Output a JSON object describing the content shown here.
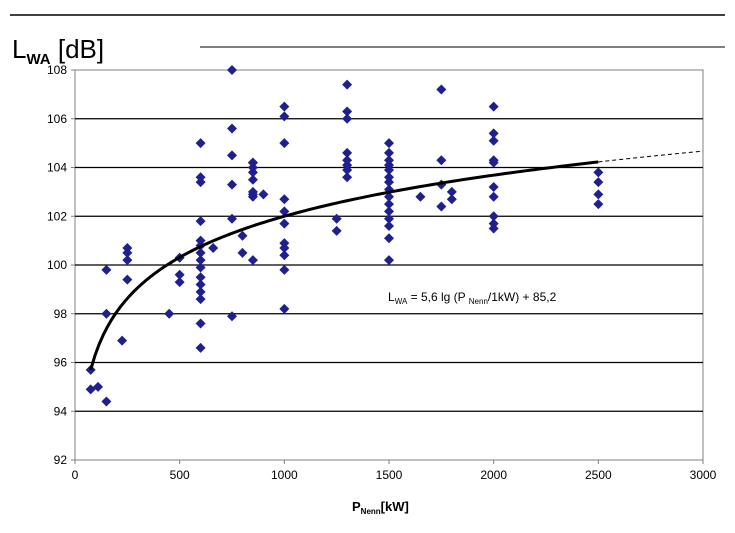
{
  "chart_data": {
    "type": "scatter",
    "ylabel": {
      "main": "L",
      "sub": "WA",
      "unit": " [dB]"
    },
    "xlabel": {
      "main": "P",
      "sub": "Nenn",
      "unit": "[kW]"
    },
    "xlim": [
      0,
      3000
    ],
    "ylim": [
      92,
      108
    ],
    "x_ticks": [
      0,
      500,
      1000,
      1500,
      2000,
      2500,
      3000
    ],
    "y_ticks": [
      92,
      94,
      96,
      98,
      100,
      102,
      104,
      106,
      108
    ],
    "grid": "horizontal",
    "marker_color": "#1F1F8F",
    "points": [
      [
        75,
        94.9
      ],
      [
        75,
        95.7
      ],
      [
        110,
        95.0
      ],
      [
        150,
        94.4
      ],
      [
        150,
        98.0
      ],
      [
        150,
        99.8
      ],
      [
        225,
        96.9
      ],
      [
        250,
        99.4
      ],
      [
        250,
        100.2
      ],
      [
        250,
        100.5
      ],
      [
        250,
        100.7
      ],
      [
        450,
        98.0
      ],
      [
        500,
        99.3
      ],
      [
        500,
        99.6
      ],
      [
        500,
        100.3
      ],
      [
        600,
        96.6
      ],
      [
        600,
        97.6
      ],
      [
        600,
        98.6
      ],
      [
        600,
        98.9
      ],
      [
        600,
        99.2
      ],
      [
        600,
        99.5
      ],
      [
        600,
        99.9
      ],
      [
        600,
        100.2
      ],
      [
        600,
        100.5
      ],
      [
        600,
        100.8
      ],
      [
        600,
        101.0
      ],
      [
        600,
        101.8
      ],
      [
        600,
        103.4
      ],
      [
        600,
        103.6
      ],
      [
        600,
        105.0
      ],
      [
        660,
        100.7
      ],
      [
        750,
        97.9
      ],
      [
        750,
        101.9
      ],
      [
        750,
        103.3
      ],
      [
        750,
        104.5
      ],
      [
        750,
        105.6
      ],
      [
        750,
        108.0
      ],
      [
        800,
        100.5
      ],
      [
        800,
        101.2
      ],
      [
        850,
        100.2
      ],
      [
        850,
        102.8
      ],
      [
        850,
        102.9
      ],
      [
        850,
        103.0
      ],
      [
        850,
        103.5
      ],
      [
        850,
        103.8
      ],
      [
        850,
        104.0
      ],
      [
        850,
        104.2
      ],
      [
        850,
        104.2
      ],
      [
        900,
        102.9
      ],
      [
        1000,
        98.2
      ],
      [
        1000,
        99.8
      ],
      [
        1000,
        100.4
      ],
      [
        1000,
        100.7
      ],
      [
        1000,
        100.9
      ],
      [
        1000,
        101.7
      ],
      [
        1000,
        102.2
      ],
      [
        1000,
        102.7
      ],
      [
        1000,
        105.0
      ],
      [
        1000,
        106.1
      ],
      [
        1000,
        106.5
      ],
      [
        1250,
        101.4
      ],
      [
        1250,
        101.9
      ],
      [
        1300,
        103.6
      ],
      [
        1300,
        103.9
      ],
      [
        1300,
        104.1
      ],
      [
        1300,
        104.3
      ],
      [
        1300,
        104.6
      ],
      [
        1300,
        106.0
      ],
      [
        1300,
        106.3
      ],
      [
        1300,
        107.4
      ],
      [
        1500,
        100.2
      ],
      [
        1500,
        101.1
      ],
      [
        1500,
        101.6
      ],
      [
        1500,
        101.9
      ],
      [
        1500,
        102.2
      ],
      [
        1500,
        102.5
      ],
      [
        1500,
        102.8
      ],
      [
        1500,
        103.1
      ],
      [
        1500,
        103.4
      ],
      [
        1500,
        103.6
      ],
      [
        1500,
        103.9
      ],
      [
        1500,
        104.1
      ],
      [
        1500,
        104.3
      ],
      [
        1500,
        104.6
      ],
      [
        1500,
        105.0
      ],
      [
        1650,
        102.8
      ],
      [
        1750,
        102.4
      ],
      [
        1750,
        103.3
      ],
      [
        1750,
        104.3
      ],
      [
        1750,
        107.2
      ],
      [
        1800,
        102.7
      ],
      [
        1800,
        103.0
      ],
      [
        2000,
        101.5
      ],
      [
        2000,
        101.7
      ],
      [
        2000,
        102.0
      ],
      [
        2000,
        102.8
      ],
      [
        2000,
        103.2
      ],
      [
        2000,
        104.2
      ],
      [
        2000,
        104.3
      ],
      [
        2000,
        105.1
      ],
      [
        2000,
        105.4
      ],
      [
        2000,
        106.5
      ],
      [
        2500,
        102.5
      ],
      [
        2500,
        102.9
      ],
      [
        2500,
        103.4
      ],
      [
        2500,
        103.8
      ]
    ],
    "fit": {
      "label": {
        "main": "L",
        "sub1": "WA",
        "mid": " = 5,6 lg (P ",
        "sub2": "Nenn",
        "end": "/1kW) + 85,2"
      },
      "a": 5.6,
      "b": 85.2,
      "solid_range": [
        75,
        2500
      ],
      "dashed_range": [
        2500,
        3000
      ]
    }
  }
}
